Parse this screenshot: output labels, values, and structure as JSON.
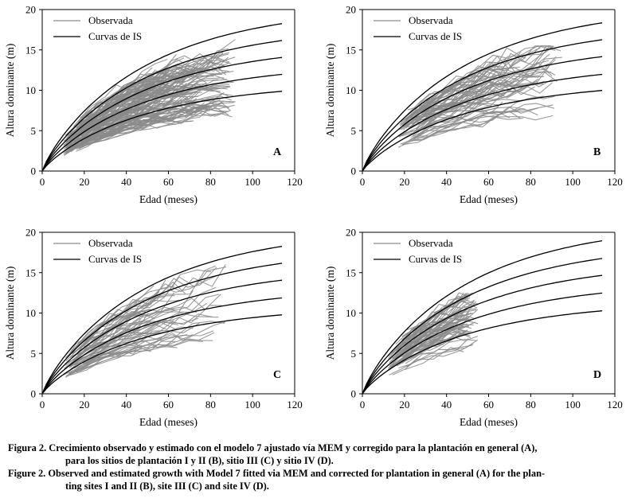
{
  "figure": {
    "panels": [
      {
        "letter": "A"
      },
      {
        "letter": "B"
      },
      {
        "letter": "C"
      },
      {
        "letter": "D"
      }
    ]
  },
  "caption": {
    "es_line1": "Figura 2. Crecimiento observado y estimado con el modelo 7 ajustado vía MEM y corregido para la plantación en general (A),",
    "es_line2": "para los sitios de plantación I y II (B), sitio III (C) y sitio IV (D).",
    "en_line1": "Figure 2. Observed and estimated growth with Model 7 fitted via MEM and corrected for plantation in general (A) for the plan-",
    "en_line2": "ting sites I and II (B), site III (C) and site IV (D)."
  },
  "chart_data": [
    {
      "type": "line",
      "panel": "A",
      "xlabel": "Edad (meses)",
      "ylabel": "Altura dominante (m)",
      "xlim": [
        0,
        120
      ],
      "ylim": [
        0,
        20
      ],
      "xticks": [
        0,
        20,
        40,
        60,
        80,
        100,
        120
      ],
      "yticks": [
        0,
        5,
        10,
        15,
        20
      ],
      "legend": [
        "Observada",
        "Curvas de IS"
      ],
      "legend_position": "top-left",
      "observed": {
        "name": "Observada",
        "color": "#8a8a8a",
        "age_range": [
          10,
          92
        ],
        "height_range": [
          0.5,
          16.3
        ],
        "n_trees": 140
      },
      "site_index_curves": {
        "name": "Curvas de IS",
        "color": "#000000",
        "x_end": 115,
        "asymptote_ref_x": 115,
        "values_at_115": [
          18.3,
          16.2,
          14.1,
          12.0,
          9.9
        ],
        "values_at_40": [
          10.9,
          9.6,
          8.4,
          7.1,
          5.9
        ]
      }
    },
    {
      "type": "line",
      "panel": "B",
      "xlabel": "Edad (meses)",
      "ylabel": "Altura dominante (m)",
      "xlim": [
        0,
        120
      ],
      "ylim": [
        0,
        20
      ],
      "xticks": [
        0,
        20,
        40,
        60,
        80,
        100,
        120
      ],
      "yticks": [
        0,
        5,
        10,
        15,
        20
      ],
      "legend": [
        "Observada",
        "Curvas de IS"
      ],
      "legend_position": "top-left",
      "observed": {
        "name": "Observada",
        "color": "#8a8a8a",
        "age_range": [
          17,
          95
        ],
        "height_range": [
          2.2,
          15.5
        ],
        "n_trees": 70
      },
      "site_index_curves": {
        "name": "Curvas de IS",
        "color": "#000000",
        "x_end": 115,
        "values_at_115": [
          18.4,
          16.3,
          14.2,
          12.0,
          10.0
        ],
        "values_at_40": [
          10.7,
          9.5,
          8.3,
          7.0,
          5.8
        ]
      }
    },
    {
      "type": "line",
      "panel": "C",
      "xlabel": "Edad (meses)",
      "ylabel": "Altura dominante (m)",
      "xlim": [
        0,
        120
      ],
      "ylim": [
        0,
        20
      ],
      "xticks": [
        0,
        20,
        40,
        60,
        80,
        100,
        120
      ],
      "yticks": [
        0,
        5,
        10,
        15,
        20
      ],
      "legend": [
        "Observada",
        "Curvas de IS"
      ],
      "legend_position": "top-left",
      "observed": {
        "name": "Observada",
        "color": "#8a8a8a",
        "age_range": [
          10,
          88
        ],
        "height_range": [
          1.5,
          16.0
        ],
        "n_trees": 60
      },
      "site_index_curves": {
        "name": "Curvas de IS",
        "color": "#000000",
        "x_end": 115,
        "values_at_115": [
          18.3,
          16.2,
          14.1,
          11.9,
          9.8
        ],
        "values_at_40": [
          10.9,
          9.6,
          8.4,
          7.1,
          5.9
        ]
      }
    },
    {
      "type": "line",
      "panel": "D",
      "xlabel": "Edad (meses)",
      "ylabel": "Altura dominante (m)",
      "xlim": [
        0,
        120
      ],
      "ylim": [
        0,
        20
      ],
      "xticks": [
        0,
        20,
        40,
        60,
        80,
        100,
        120
      ],
      "yticks": [
        0,
        5,
        10,
        15,
        20
      ],
      "legend": [
        "Observada",
        "Curvas de IS"
      ],
      "legend_position": "top-left",
      "observed": {
        "name": "Observada",
        "color": "#8a8a8a",
        "age_range": [
          12,
          55
        ],
        "height_range": [
          1.5,
          12.5
        ],
        "n_trees": 70
      },
      "site_index_curves": {
        "name": "Curvas de IS",
        "color": "#000000",
        "x_end": 115,
        "values_at_115": [
          19.0,
          16.8,
          14.7,
          12.5,
          10.3
        ],
        "values_at_40": [
          9.6,
          8.5,
          7.4,
          6.3,
          5.2
        ]
      }
    }
  ]
}
